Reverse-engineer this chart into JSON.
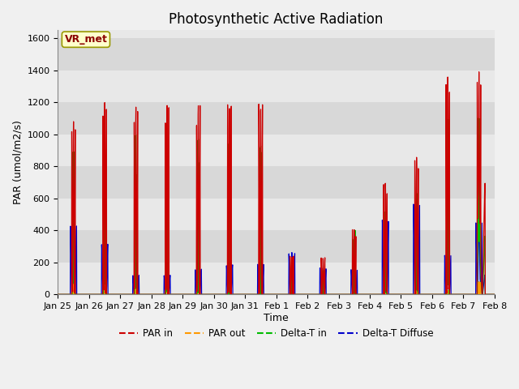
{
  "title": "Photosynthetic Active Radiation",
  "xlabel": "Time",
  "ylabel": "PAR (umol/m2/s)",
  "ylim": [
    0,
    1650
  ],
  "yticks": [
    0,
    200,
    400,
    600,
    800,
    1000,
    1200,
    1400,
    1600
  ],
  "xtick_labels": [
    "Jan 25",
    "Jan 26",
    "Jan 27",
    "Jan 28",
    "Jan 29",
    "Jan 30",
    "Jan 31",
    "Feb 1",
    "Feb 2",
    "Feb 3",
    "Feb 4",
    "Feb 5",
    "Feb 6",
    "Feb 7",
    "Feb 8"
  ],
  "legend_labels": [
    "PAR in",
    "PAR out",
    "Delta-T in",
    "Delta-T Diffuse"
  ],
  "legend_colors": [
    "#cc0000",
    "#ff9900",
    "#00bb00",
    "#0000cc"
  ],
  "background_color": "#f0f0f0",
  "plot_bg_color": "#f0f0f0",
  "annotation_text": "VR_met",
  "annotation_color": "#8b0000",
  "annotation_bg": "#ffffcc",
  "annotation_border": "#999900",
  "title_fontsize": 12,
  "axis_fontsize": 9,
  "tick_fontsize": 8,
  "n_points": 2016,
  "days": 14,
  "band_colors": [
    "#e8e8e8",
    "#d8d8d8"
  ]
}
